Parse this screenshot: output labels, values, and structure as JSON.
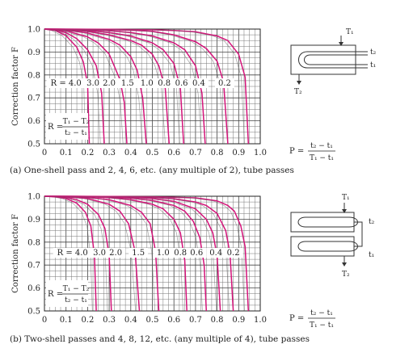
{
  "chart_data": [
    {
      "type": "line",
      "ylabel": "Correction factor F",
      "xlim": [
        0,
        1.0
      ],
      "ylim": [
        0.5,
        1.0
      ],
      "x_ticks": [
        "0",
        "0.1",
        "0.2",
        "0.3",
        "0.4",
        "0.5",
        "0.6",
        "0.7",
        "0.8",
        "0.9",
        "1.0"
      ],
      "y_ticks": [
        "0.5",
        "0.6",
        "0.7",
        "0.8",
        "0.9",
        "1.0"
      ],
      "grid": true,
      "curve_color": "#d4147a",
      "r_labels": [
        "R = 4.0",
        "3.0",
        "2.0",
        "1.5",
        "1.0",
        "0.8",
        "0.6",
        "0.4",
        "0.2"
      ],
      "p_label": "P =",
      "p_num": "t₂ − t₁",
      "p_den": "T₁ − t₁",
      "r_eq_label": "R =",
      "r_num": "T₁ − T₂",
      "r_den": "t₂ − t₁",
      "caption": "(a) One-shell pass and 2, 4, 6, etc. (any multiple of 2), tube passes",
      "schematic": {
        "T1": "T₁",
        "T2": "T₂",
        "t1": "t₁",
        "t2": "t₂"
      },
      "series": [
        {
          "name": "4.0",
          "x": [
            0,
            0.05,
            0.1,
            0.15,
            0.18,
            0.2,
            0.208
          ],
          "y": [
            1.0,
            0.994,
            0.971,
            0.921,
            0.857,
            0.76,
            0.5
          ]
        },
        {
          "name": "3.0",
          "x": [
            0,
            0.05,
            0.1,
            0.15,
            0.2,
            0.24,
            0.265,
            0.277
          ],
          "y": [
            1.0,
            0.997,
            0.984,
            0.958,
            0.91,
            0.84,
            0.72,
            0.5
          ]
        },
        {
          "name": "2.0",
          "x": [
            0,
            0.1,
            0.2,
            0.25,
            0.3,
            0.35,
            0.37,
            0.382
          ],
          "y": [
            1.0,
            0.993,
            0.966,
            0.939,
            0.891,
            0.78,
            0.68,
            0.5
          ]
        },
        {
          "name": "1.5",
          "x": [
            0,
            0.1,
            0.2,
            0.3,
            0.35,
            0.4,
            0.43,
            0.455,
            0.472
          ],
          "y": [
            1.0,
            0.996,
            0.983,
            0.955,
            0.93,
            0.88,
            0.82,
            0.7,
            0.5
          ]
        },
        {
          "name": "1.0",
          "x": [
            0,
            0.1,
            0.2,
            0.3,
            0.4,
            0.45,
            0.5,
            0.53,
            0.56,
            0.578
          ],
          "y": [
            1.0,
            0.998,
            0.99,
            0.975,
            0.95,
            0.93,
            0.89,
            0.84,
            0.74,
            0.5
          ]
        },
        {
          "name": "0.8",
          "x": [
            0,
            0.1,
            0.2,
            0.3,
            0.4,
            0.5,
            0.55,
            0.6,
            0.63,
            0.645
          ],
          "y": [
            1.0,
            0.999,
            0.994,
            0.985,
            0.97,
            0.94,
            0.91,
            0.85,
            0.74,
            0.5
          ]
        },
        {
          "name": "0.6",
          "x": [
            0,
            0.1,
            0.2,
            0.3,
            0.4,
            0.5,
            0.6,
            0.65,
            0.7,
            0.73,
            0.745
          ],
          "y": [
            1.0,
            0.999,
            0.997,
            0.993,
            0.985,
            0.97,
            0.94,
            0.91,
            0.84,
            0.72,
            0.5
          ]
        },
        {
          "name": "0.4",
          "x": [
            0,
            0.2,
            0.4,
            0.5,
            0.6,
            0.7,
            0.75,
            0.8,
            0.83,
            0.85
          ],
          "y": [
            1.0,
            0.999,
            0.995,
            0.99,
            0.975,
            0.945,
            0.915,
            0.86,
            0.77,
            0.5
          ]
        },
        {
          "name": "0.2",
          "x": [
            0,
            0.3,
            0.5,
            0.6,
            0.7,
            0.8,
            0.85,
            0.9,
            0.93,
            0.945
          ],
          "y": [
            1.0,
            0.999,
            0.997,
            0.994,
            0.988,
            0.97,
            0.95,
            0.89,
            0.79,
            0.5
          ]
        }
      ]
    },
    {
      "type": "line",
      "ylabel": "Correction factor F",
      "xlim": [
        0,
        1.0
      ],
      "ylim": [
        0.5,
        1.0
      ],
      "x_ticks": [
        "0",
        "0.1",
        "0.2",
        "0.3",
        "0.4",
        "0.5",
        "0.6",
        "0.7",
        "0.8",
        "0.9",
        "1.0"
      ],
      "y_ticks": [
        "0.5",
        "0.6",
        "0.7",
        "0.8",
        "0.9",
        "1.0"
      ],
      "grid": true,
      "curve_color": "#d4147a",
      "r_labels": [
        "R = 4.0",
        "3.0",
        "2.0",
        "1.5",
        "1.0",
        "0.8",
        "0.6",
        "0.4",
        "0.2"
      ],
      "p_label": "P =",
      "p_num": "t₂ − t₁",
      "p_den": "T₁ − t₁",
      "r_eq_label": "R =",
      "r_num": "T₁ − T₂",
      "r_den": "t₂ − t₁",
      "caption": "(b) Two-shell passes and 4, 8, 12, etc. (any multiple of 4), tube passes",
      "schematic": {
        "T1": "T₁",
        "T2": "T₂",
        "t1": "t₁",
        "t2": "t₂"
      },
      "series": [
        {
          "name": "4.0",
          "x": [
            0,
            0.05,
            0.1,
            0.15,
            0.19,
            0.215,
            0.232,
            0.24
          ],
          "y": [
            1.0,
            0.998,
            0.99,
            0.97,
            0.93,
            0.87,
            0.74,
            0.5
          ]
        },
        {
          "name": "3.0",
          "x": [
            0,
            0.1,
            0.15,
            0.2,
            0.25,
            0.28,
            0.3,
            0.31
          ],
          "y": [
            1.0,
            0.995,
            0.985,
            0.965,
            0.92,
            0.86,
            0.74,
            0.5
          ]
        },
        {
          "name": "2.0",
          "x": [
            0,
            0.1,
            0.2,
            0.3,
            0.35,
            0.39,
            0.42,
            0.44
          ],
          "y": [
            1.0,
            0.998,
            0.99,
            0.965,
            0.935,
            0.88,
            0.76,
            0.5
          ]
        },
        {
          "name": "1.5",
          "x": [
            0,
            0.1,
            0.2,
            0.3,
            0.4,
            0.45,
            0.49,
            0.515,
            0.53
          ],
          "y": [
            1.0,
            0.999,
            0.995,
            0.985,
            0.96,
            0.93,
            0.88,
            0.76,
            0.5
          ]
        },
        {
          "name": "1.0",
          "x": [
            0,
            0.2,
            0.3,
            0.4,
            0.5,
            0.55,
            0.6,
            0.63,
            0.65,
            0.66
          ],
          "y": [
            1.0,
            0.998,
            0.994,
            0.985,
            0.965,
            0.945,
            0.9,
            0.84,
            0.72,
            0.5
          ]
        },
        {
          "name": "0.8",
          "x": [
            0,
            0.2,
            0.4,
            0.5,
            0.6,
            0.65,
            0.69,
            0.72,
            0.74,
            0.75
          ],
          "y": [
            1.0,
            0.999,
            0.992,
            0.982,
            0.96,
            0.935,
            0.89,
            0.82,
            0.7,
            0.5
          ]
        },
        {
          "name": "0.6",
          "x": [
            0,
            0.2,
            0.4,
            0.5,
            0.6,
            0.7,
            0.75,
            0.78,
            0.8,
            0.815
          ],
          "y": [
            1.0,
            0.999,
            0.996,
            0.99,
            0.978,
            0.945,
            0.9,
            0.84,
            0.74,
            0.5
          ]
        },
        {
          "name": "0.4",
          "x": [
            0,
            0.3,
            0.5,
            0.6,
            0.7,
            0.75,
            0.8,
            0.84,
            0.86,
            0.875
          ],
          "y": [
            1.0,
            0.999,
            0.995,
            0.989,
            0.975,
            0.96,
            0.925,
            0.85,
            0.75,
            0.5
          ]
        },
        {
          "name": "0.2",
          "x": [
            0,
            0.3,
            0.5,
            0.7,
            0.8,
            0.85,
            0.88,
            0.91,
            0.93,
            0.945
          ],
          "y": [
            1.0,
            0.999,
            0.998,
            0.993,
            0.98,
            0.96,
            0.935,
            0.87,
            0.78,
            0.5
          ]
        }
      ]
    }
  ]
}
